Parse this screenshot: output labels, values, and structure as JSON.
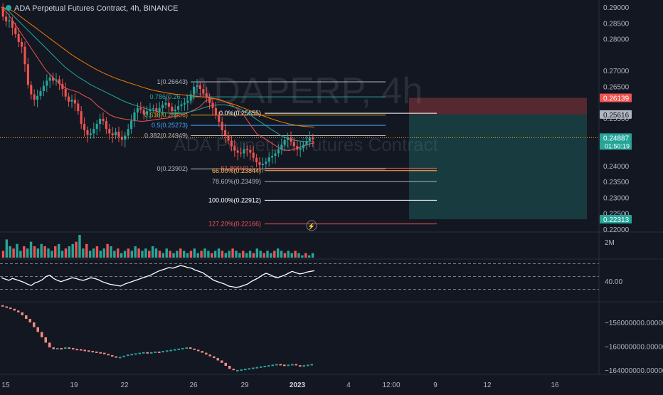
{
  "header": {
    "title": "ADA Perpetual Futures Contract, 4h, BINANCE"
  },
  "watermark": {
    "symbol": "ADAPERP, 4h",
    "description": "ADA Perpetual Futures Contract"
  },
  "colors": {
    "background": "#131722",
    "up": "#26a69a",
    "down": "#ef5350",
    "text": "#d1d4dc",
    "grid": "#2a2e39",
    "price_line": "#f7a600",
    "white": "#ffffff"
  },
  "chart_data": [
    {
      "name": "price",
      "type": "candlestick",
      "ylim": [
        0.22,
        0.29
      ],
      "y_ticks": [
        "0.29000",
        "0.28500",
        "0.28000",
        "0.27000",
        "0.26500",
        "0.25500",
        "0.24000",
        "0.23500",
        "0.23000",
        "0.22500",
        "0.22000"
      ],
      "x_ticks": [
        "15",
        "19",
        "22",
        "26",
        "29",
        "2023",
        "4",
        "12:00",
        "9",
        "12",
        "16"
      ],
      "close_series": [
        0.287,
        0.2855,
        0.2858,
        0.2835,
        0.2815,
        0.279,
        0.2775,
        0.272,
        0.2655,
        0.2625,
        0.2608,
        0.262,
        0.2635,
        0.2652,
        0.2668,
        0.2678,
        0.2668,
        0.2672,
        0.2658,
        0.2642,
        0.2618,
        0.2602,
        0.2608,
        0.2596,
        0.2572,
        0.2532,
        0.2512,
        0.2497,
        0.2502,
        0.2516,
        0.2532,
        0.2548,
        0.2541,
        0.2516,
        0.2502,
        0.2496,
        0.2507,
        0.2491,
        0.2482,
        0.2495,
        0.2516,
        0.2542,
        0.2568,
        0.2582,
        0.2577,
        0.2562,
        0.2572,
        0.2578,
        0.2581,
        0.2571,
        0.2582,
        0.2592,
        0.2598,
        0.2586,
        0.2572,
        0.2577,
        0.2588,
        0.2593,
        0.2598,
        0.2605,
        0.2625,
        0.2649,
        0.2653,
        0.2642,
        0.2628,
        0.2615,
        0.2598,
        0.2582,
        0.2559,
        0.2538,
        0.2512,
        0.2496,
        0.2479,
        0.2462,
        0.2448,
        0.2441,
        0.2439,
        0.2452,
        0.2449,
        0.2441,
        0.2425,
        0.2411,
        0.2402,
        0.2406,
        0.2413,
        0.2426,
        0.2431,
        0.2439,
        0.2451,
        0.2466,
        0.2481,
        0.2488,
        0.2475,
        0.2462,
        0.2451,
        0.2456,
        0.2466,
        0.2478,
        0.2489,
        0.2483
      ],
      "moving_averages": [
        {
          "color": "#ef5350",
          "values": [
            0.29,
            0.288,
            0.285,
            0.282,
            0.279,
            0.276,
            0.273,
            0.27,
            0.268,
            0.266,
            0.2645,
            0.2638,
            0.2632,
            0.262,
            0.261,
            0.259,
            0.2575,
            0.256,
            0.2552,
            0.2548,
            0.2545,
            0.2542,
            0.254,
            0.2542,
            0.2545,
            0.2548,
            0.255,
            0.2555,
            0.256,
            0.2565,
            0.2575,
            0.2585,
            0.2605,
            0.2612,
            0.261,
            0.2602,
            0.2592,
            0.2578,
            0.2558,
            0.2528,
            0.25,
            0.2488,
            0.2475,
            0.2462,
            0.245,
            0.2448,
            0.2453,
            0.246,
            0.2468,
            0.2472
          ]
        },
        {
          "color": "#26a69a",
          "values": [
            0.29,
            0.289,
            0.287,
            0.285,
            0.283,
            0.281,
            0.279,
            0.277,
            0.275,
            0.273,
            0.271,
            0.2695,
            0.268,
            0.2668,
            0.2655,
            0.2645,
            0.2635,
            0.2625,
            0.2615,
            0.2605,
            0.2597,
            0.259,
            0.2584,
            0.2578,
            0.2573,
            0.2569,
            0.2566,
            0.2564,
            0.2565,
            0.2568,
            0.2572,
            0.2578,
            0.2585,
            0.259,
            0.2592,
            0.2592,
            0.2588,
            0.2582,
            0.2572,
            0.256,
            0.2545,
            0.2532,
            0.2518,
            0.2505,
            0.2492,
            0.2485,
            0.248,
            0.2477,
            0.2476,
            0.2476
          ]
        },
        {
          "color": "#f57c00",
          "values": [
            0.29,
            0.2895,
            0.2885,
            0.287,
            0.2855,
            0.284,
            0.2825,
            0.281,
            0.2795,
            0.278,
            0.2765,
            0.275,
            0.2737,
            0.2725,
            0.2713,
            0.2702,
            0.2692,
            0.2683,
            0.2675,
            0.2668,
            0.2661,
            0.2655,
            0.2648,
            0.2642,
            0.2637,
            0.2633,
            0.2629,
            0.2626,
            0.2624,
            0.2622,
            0.262,
            0.2618,
            0.2616,
            0.2613,
            0.2608,
            0.2602,
            0.2596,
            0.2589,
            0.2581,
            0.2573,
            0.2565,
            0.2557,
            0.255,
            0.2543,
            0.2537,
            0.2532,
            0.2528,
            0.2525,
            0.2523,
            0.2522
          ]
        }
      ],
      "fib_retracement_1": [
        {
          "label": "1(0.26643)",
          "value": 0.26643,
          "color": "#b2b5be"
        },
        {
          "label": "0.786(0.26...)",
          "value": 0.2617,
          "color": "#26a69a"
        },
        {
          "label": "0.618(0.25596)",
          "value": 0.25596,
          "color": "#d4a017"
        },
        {
          "label": "0.5(0.25273)",
          "value": 0.25273,
          "color": "#42a5f5"
        },
        {
          "label": "0.382(0.24949)",
          "value": 0.24949,
          "color": "#b2b5be"
        },
        {
          "label": "0(0.23902)",
          "value": 0.23902,
          "color": "#b2b5be"
        }
      ],
      "fib_retracement_2": [
        {
          "label": "0.0%(0.25655)",
          "value": 0.25655,
          "color": "#ffffff"
        },
        {
          "label": "61.80%(0.2...)",
          "value": 0.2392,
          "color": "#ef5350"
        },
        {
          "label": "66.00%(0.23844)",
          "value": 0.23844,
          "color": "#ffb74d"
        },
        {
          "label": "78.60%(0.23499)",
          "value": 0.23499,
          "color": "#b2b5be"
        },
        {
          "label": "100.00%(0.22912)",
          "value": 0.22912,
          "color": "#ffffff"
        },
        {
          "label": "127.20%(0.22166)",
          "value": 0.22166,
          "color": "#ef5350"
        }
      ],
      "position": {
        "stop": 0.26139,
        "entry": 0.25616,
        "target": 0.22313
      },
      "price_labels": [
        {
          "text": "0.26139",
          "value": 0.26139,
          "bg": "#ef5350",
          "fg": "#ffffff"
        },
        {
          "text": "0.25616",
          "value": 0.25616,
          "bg": "#b2b5be",
          "fg": "#131722"
        },
        {
          "text": "0.24887",
          "value": 0.24887,
          "bg": "#26a69a",
          "fg": "#ffffff"
        },
        {
          "text": "0.22313",
          "value": 0.22313,
          "bg": "#26a69a",
          "fg": "#ffffff"
        }
      ],
      "countdown": "01:50:19",
      "current_price": 0.24887
    },
    {
      "name": "volume",
      "type": "bar",
      "axis_label": "2M",
      "values": [
        0.3,
        0.8,
        0.5,
        0.4,
        0.6,
        0.3,
        0.5,
        0.4,
        0.7,
        0.5,
        0.4,
        0.6,
        0.5,
        0.4,
        0.3,
        0.5,
        0.6,
        0.3,
        0.4,
        0.5,
        0.6,
        0.7,
        1.0,
        0.4,
        0.6,
        0.3,
        0.4,
        0.5,
        0.3,
        0.4,
        0.6,
        0.5,
        0.3,
        0.4,
        0.2,
        0.3,
        0.4,
        0.3,
        0.5,
        0.4,
        0.3,
        0.4,
        0.3,
        0.5,
        0.4,
        0.3,
        0.2,
        0.4,
        0.3,
        0.2,
        0.3,
        0.4,
        0.3,
        0.2,
        0.3,
        0.4,
        0.2,
        0.3,
        0.4,
        0.3,
        0.2,
        0.3,
        0.4,
        0.3,
        0.2,
        0.3,
        0.4,
        0.3,
        0.2,
        0.3,
        0.2,
        0.3,
        0.2,
        0.4,
        0.3,
        0.2,
        0.3,
        0.2,
        0.3,
        0.4,
        0.3,
        0.2,
        0.3,
        0.2,
        0.3,
        0.2,
        0.1,
        0.2,
        0.1,
        0.2
      ]
    },
    {
      "name": "rsi",
      "type": "line",
      "axis_label": "40.00",
      "ylim": [
        15,
        75
      ],
      "bands": [
        70,
        50,
        30
      ],
      "values": [
        48,
        46,
        44,
        47,
        45,
        43,
        41,
        38,
        36,
        40,
        42,
        45,
        50,
        52,
        47,
        44,
        42,
        44,
        46,
        48,
        47,
        45,
        44,
        46,
        48,
        47,
        45,
        42,
        40,
        38,
        37,
        36,
        35,
        38,
        40,
        42,
        44,
        46,
        48,
        50,
        52,
        55,
        58,
        60,
        62,
        64,
        63,
        65,
        67,
        66,
        64,
        63,
        60,
        58,
        56,
        52,
        48,
        44,
        42,
        40,
        38,
        35,
        34,
        33,
        34,
        36,
        38,
        42,
        45,
        48,
        52,
        55,
        53,
        50,
        48,
        50,
        52,
        55,
        58,
        56,
        54,
        55,
        57,
        58,
        59
      ]
    },
    {
      "name": "obv",
      "type": "line",
      "y_ticks": [
        "-156000000.00000",
        "-160000000.00000",
        "-164000000.00000"
      ],
      "ylim": [
        -164500000,
        -153000000
      ],
      "values": [
        -153300000,
        -153500000,
        -153700000,
        -154000000,
        -154300000,
        -154800000,
        -155400000,
        -156000000,
        -156800000,
        -157600000,
        -158500000,
        -159400000,
        -160200000,
        -160500000,
        -160300000,
        -160400000,
        -160200000,
        -160300000,
        -160450000,
        -160500000,
        -160600000,
        -160700000,
        -160800000,
        -160900000,
        -161000000,
        -161100000,
        -161300000,
        -161500000,
        -161700000,
        -161900000,
        -161800000,
        -161600000,
        -161400000,
        -161300000,
        -161200000,
        -161100000,
        -161000000,
        -161100000,
        -161000000,
        -160900000,
        -161000000,
        -160800000,
        -160700000,
        -160600000,
        -160500000,
        -160400000,
        -160300000,
        -160200000,
        -160400000,
        -160600000,
        -160800000,
        -161100000,
        -161400000,
        -161700000,
        -162000000,
        -162400000,
        -162800000,
        -163300000,
        -163800000,
        -164000000,
        -164000000,
        -163900000,
        -163800000,
        -163700000,
        -163600000,
        -163500000,
        -163400000,
        -163300000,
        -163200000,
        -163100000,
        -163000000,
        -163100000,
        -163200000,
        -163100000,
        -163000000,
        -163200000,
        -163300000,
        -163200000,
        -163100000,
        -163000000
      ]
    }
  ]
}
